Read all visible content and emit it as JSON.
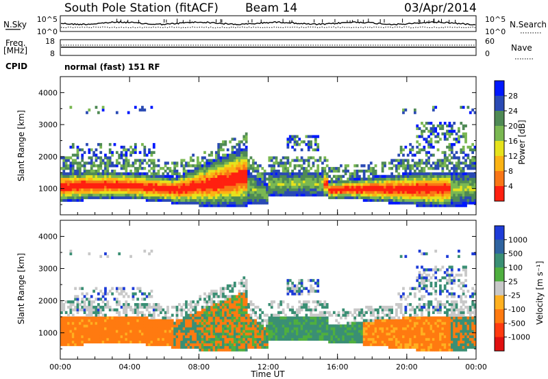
{
  "header": {
    "station": "South Pole Station (fitACF)",
    "beam": "Beam 14",
    "date": "03/Apr/2014"
  },
  "top_panels": {
    "nsky_label": "N.Sky",
    "nsky_ticks": [
      "10^5",
      "10^0"
    ],
    "nsearch_label": "N.Search",
    "nsearch_ticks": [
      "10^5",
      "10^0"
    ],
    "freq_label_1": "Freq.",
    "freq_label_2": "[MHz]",
    "freq_ticks": [
      "18",
      "8"
    ],
    "nave_label": "Nave",
    "nave_ticks": [
      "60",
      "0"
    ],
    "cpid_label": "CPID",
    "cpid_value": "normal (fast) 151 RF"
  },
  "chart_data": [
    {
      "type": "heatmap",
      "panel": "power",
      "ylabel": "Slant Range [km]",
      "ylim": [
        180,
        4500
      ],
      "yticks": [
        "4000",
        "3000",
        "2000",
        "1000"
      ],
      "colorbar_label": "Power [dB]",
      "colorbar_ticks": [
        "28",
        "24",
        "20",
        "16",
        "12",
        "8",
        "4"
      ],
      "colors": [
        "#0018ff",
        "#2a4ab4",
        "#4f8a55",
        "#7ab852",
        "#e6e21c",
        "#fbb314",
        "#f97616",
        "#ff2010"
      ]
    },
    {
      "type": "heatmap",
      "panel": "velocity",
      "ylabel": "Slant Range [km]",
      "ylim": [
        180,
        4500
      ],
      "yticks": [
        "4000",
        "3000",
        "2000",
        "1000"
      ],
      "colorbar_label": "Velocity [m s⁻¹]",
      "colorbar_ticks": [
        "1000",
        "500",
        "100",
        "25",
        "-25",
        "-100",
        "-500",
        "-1000"
      ],
      "colors": [
        "#1e3cd8",
        "#2f64a0",
        "#3a8f74",
        "#4faf3f",
        "#c8c8c8",
        "#ffb020",
        "#ff7a10",
        "#ff3a10",
        "#e01010"
      ]
    }
  ],
  "x_axis": {
    "label": "Time UT",
    "ticks": [
      "00:00",
      "04:00",
      "08:00",
      "12:00",
      "16:00",
      "20:00",
      "00:00"
    ]
  }
}
